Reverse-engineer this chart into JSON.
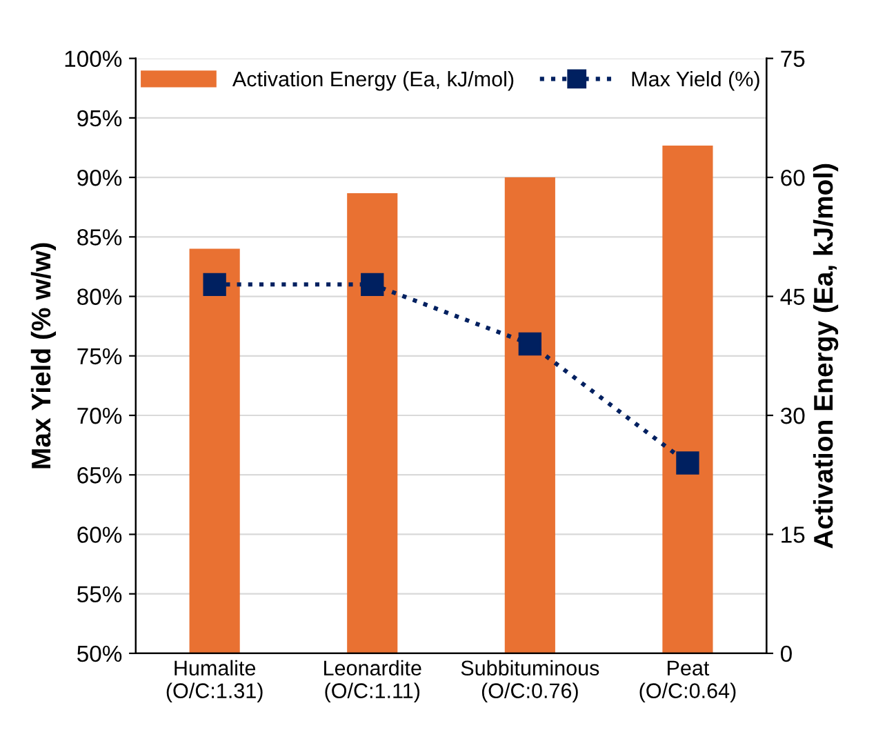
{
  "chart_data": {
    "type": "bar",
    "ylabel": "Max Yield (% w/w)",
    "y2label": "Activation Energy (Ea, kJ/mol)",
    "categories": [
      "Humalite\n(O/C:1.31)",
      "Leonardite\n(O/C:1.11)",
      "Subbituminous\n(O/C:0.76)",
      "Peat\n(O/C:0.64)"
    ],
    "series": [
      {
        "name": "Activation Energy (Ea, kJ/mol)",
        "color": "#e97132",
        "axis": "y2",
        "values": [
          51,
          58,
          60,
          64
        ]
      },
      {
        "name": "Max Yield (%)",
        "type": "line",
        "color": "#002060",
        "axis": "y",
        "marker": "square",
        "line_style": "dotted",
        "values": [
          81,
          81,
          76,
          66
        ]
      }
    ],
    "ylim": [
      50,
      100
    ],
    "yticks": [
      {
        "value": 50,
        "label": "50%"
      },
      {
        "value": 55,
        "label": "55%"
      },
      {
        "value": 60,
        "label": "60%"
      },
      {
        "value": 65,
        "label": "65%"
      },
      {
        "value": 70,
        "label": "70%"
      },
      {
        "value": 75,
        "label": "75%"
      },
      {
        "value": 80,
        "label": "80%"
      },
      {
        "value": 85,
        "label": "85%"
      },
      {
        "value": 90,
        "label": "90%"
      },
      {
        "value": 95,
        "label": "95%"
      },
      {
        "value": 100,
        "label": "100%"
      }
    ],
    "y2lim": [
      0,
      75
    ],
    "y2ticks": [
      0,
      15,
      30,
      45,
      60,
      75
    ],
    "grid": "y",
    "legend": "top"
  }
}
